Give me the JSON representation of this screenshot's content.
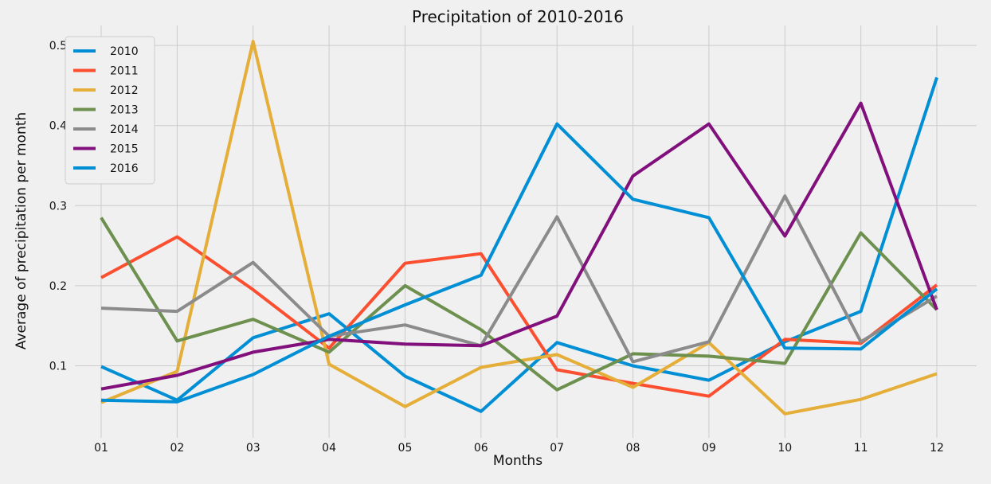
{
  "chart_data": {
    "type": "line",
    "title": "Precipitation of 2010-2016",
    "xlabel": "Months",
    "ylabel": "Average of precipitation per month",
    "categories": [
      "01",
      "02",
      "03",
      "04",
      "05",
      "06",
      "07",
      "08",
      "09",
      "10",
      "11",
      "12"
    ],
    "ylim": [
      0.01,
      0.525
    ],
    "yticks": [
      "0.1",
      "0.2",
      "0.3",
      "0.4",
      "0.5"
    ],
    "grid": true,
    "legend_position": "top-left",
    "series": [
      {
        "name": "2010",
        "color": "#008fd5",
        "values": [
          0.099,
          0.057,
          0.135,
          0.165,
          0.087,
          0.043,
          0.129,
          0.1,
          0.082,
          0.13,
          0.168,
          0.46
        ]
      },
      {
        "name": "2011",
        "color": "#fc4f30",
        "values": [
          0.21,
          0.261,
          0.195,
          0.122,
          0.228,
          0.24,
          0.095,
          0.078,
          0.062,
          0.133,
          0.128,
          0.201
        ]
      },
      {
        "name": "2012",
        "color": "#e5ae38",
        "values": [
          0.054,
          0.093,
          0.505,
          0.102,
          0.049,
          0.098,
          0.114,
          0.073,
          0.129,
          0.04,
          0.058,
          0.09
        ]
      },
      {
        "name": "2013",
        "color": "#6d904f",
        "values": [
          0.285,
          0.131,
          0.158,
          0.117,
          0.2,
          0.145,
          0.07,
          0.115,
          0.112,
          0.103,
          0.266,
          0.17
        ]
      },
      {
        "name": "2014",
        "color": "#8b8b8b",
        "values": [
          0.172,
          0.168,
          0.229,
          0.137,
          0.151,
          0.125,
          0.286,
          0.105,
          0.13,
          0.312,
          0.13,
          0.187
        ]
      },
      {
        "name": "2015",
        "color": "#810f7c",
        "values": [
          0.071,
          0.088,
          0.117,
          0.133,
          0.127,
          0.125,
          0.162,
          0.337,
          0.402,
          0.262,
          0.428,
          0.17
        ]
      },
      {
        "name": "2016",
        "color": "#008fd5",
        "values": [
          0.057,
          0.055,
          0.089,
          0.137,
          0.176,
          0.213,
          0.402,
          0.308,
          0.285,
          0.122,
          0.121,
          0.196
        ]
      }
    ]
  }
}
